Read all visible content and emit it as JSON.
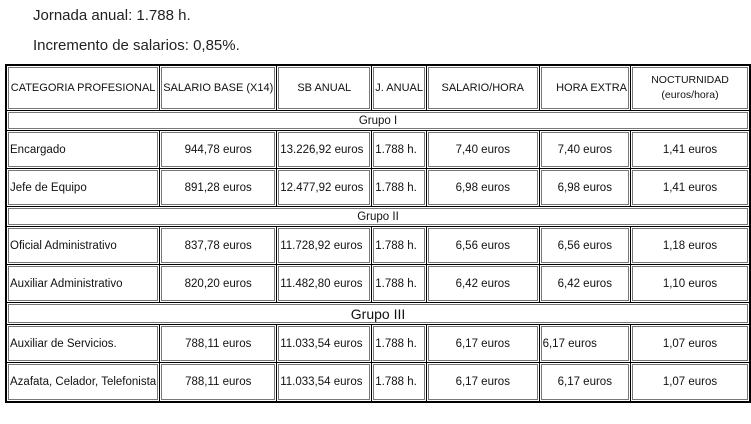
{
  "intro": {
    "line1": "Jornada anual: 1.788 h.",
    "line2": "Incremento de salarios: 0,85%."
  },
  "table": {
    "headers": {
      "categoria": "CATEGORIA PROFESIONAL",
      "salario_base": "SALARIO BASE (X14)",
      "sb_anual": "SB ANUAL",
      "j_anual": "J. ANUAL",
      "salario_hora": "SALARIO/HORA",
      "hora_extra": "HORA EXTRA",
      "nocturnidad": "NOCTURNIDAD",
      "nocturnidad_unit": "(euros/hora)"
    },
    "groups": [
      {
        "name": "Grupo I",
        "rows": [
          {
            "categoria": "Encargado",
            "salario_base": "944,78 euros",
            "sb_anual": "13.226,92 euros",
            "j_anual": "1.788 h.",
            "salario_hora": "7,40 euros",
            "hora_extra": "7,40 euros",
            "nocturnidad": "1,41 euros"
          },
          {
            "categoria": "Jefe de Equipo",
            "salario_base": "891,28 euros",
            "sb_anual": "12.477,92 euros",
            "j_anual": "1.788 h.",
            "salario_hora": "6,98 euros",
            "hora_extra": "6,98 euros",
            "nocturnidad": "1,41 euros"
          }
        ]
      },
      {
        "name": "Grupo II",
        "rows": [
          {
            "categoria": "Oficial Administrativo",
            "salario_base": "837,78 euros",
            "sb_anual": "11.728,92 euros",
            "j_anual": "1.788 h.",
            "salario_hora": "6,56 euros",
            "hora_extra": "6,56 euros",
            "nocturnidad": "1,18 euros"
          },
          {
            "categoria": "Auxiliar Administrativo",
            "salario_base": "820,20 euros",
            "sb_anual": "11.482,80 euros",
            "j_anual": "1.788 h.",
            "salario_hora": "6,42 euros",
            "hora_extra": "6,42 euros",
            "nocturnidad": "1,10 euros"
          }
        ]
      },
      {
        "name": "Grupo III",
        "rows": [
          {
            "categoria": "Auxiliar de Servicios.",
            "salario_base": "788,11 euros",
            "sb_anual": "11.033,54 euros",
            "j_anual": "1.788 h.",
            "salario_hora": "6,17 euros",
            "hora_extra": "6,17 euros",
            "nocturnidad": "1,07 euros"
          },
          {
            "categoria": "Azafata, Celador, Telefonista",
            "salario_base": "788,11 euros",
            "sb_anual": "11.033,54 euros",
            "j_anual": "1.788 h.",
            "salario_hora": "6,17 euros",
            "hora_extra": "6,17 euros",
            "nocturnidad": "1,07 euros"
          }
        ]
      }
    ]
  }
}
